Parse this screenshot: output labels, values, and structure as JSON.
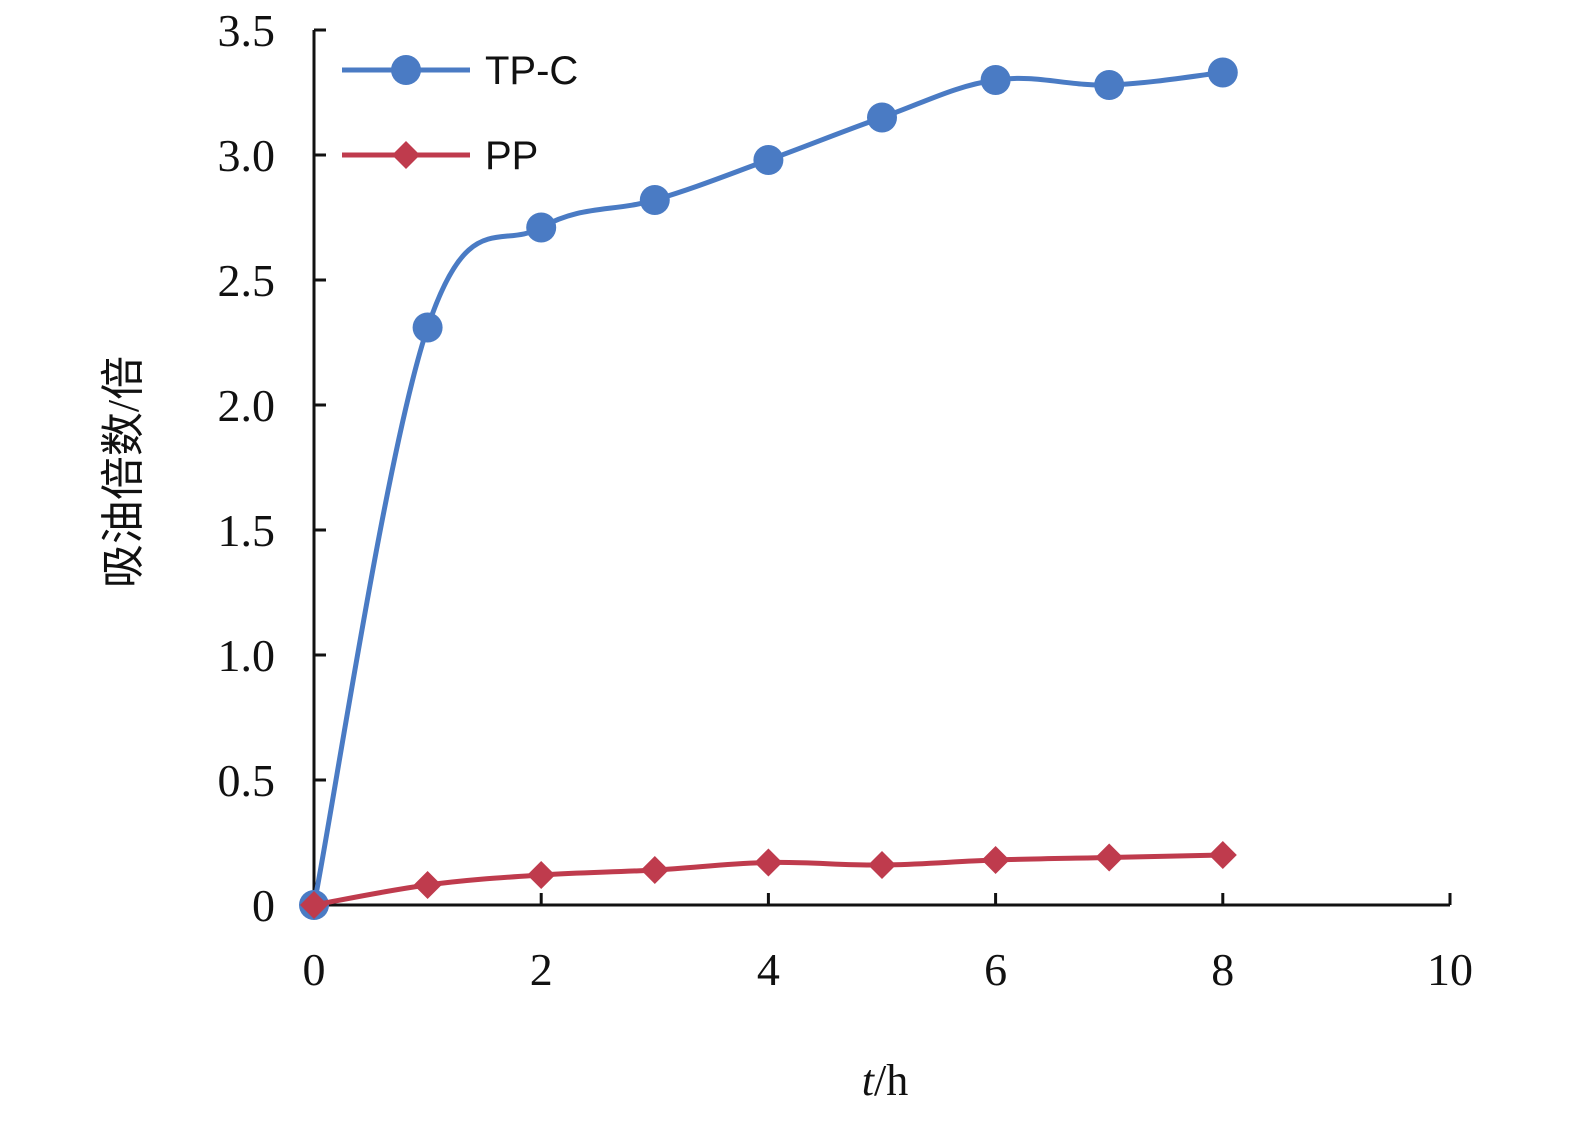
{
  "chart_data": {
    "type": "line",
    "title": "",
    "xlabel_italic": "t",
    "xlabel_rest": "/h",
    "ylabel": "吸油倍数/倍",
    "xlim": [
      0,
      10
    ],
    "ylim": [
      0,
      3.5
    ],
    "x_ticks": [
      "0",
      "2",
      "4",
      "6",
      "8",
      "10"
    ],
    "y_ticks": [
      "0",
      "0.5",
      "1.0",
      "1.5",
      "2.0",
      "2.5",
      "3.0",
      "3.5"
    ],
    "x": [
      0,
      1,
      2,
      3,
      4,
      5,
      6,
      7,
      8
    ],
    "series": [
      {
        "name": "TP-C",
        "color": "#4a7bc4",
        "marker": "circle",
        "values": [
          0,
          2.31,
          2.71,
          2.82,
          2.98,
          3.15,
          3.3,
          3.28,
          3.33
        ]
      },
      {
        "name": "PP",
        "color": "#bf3b4d",
        "marker": "diamond",
        "values": [
          0,
          0.08,
          0.12,
          0.14,
          0.17,
          0.16,
          0.18,
          0.19,
          0.2
        ]
      }
    ],
    "legend_position": "top-left",
    "grid": false
  }
}
